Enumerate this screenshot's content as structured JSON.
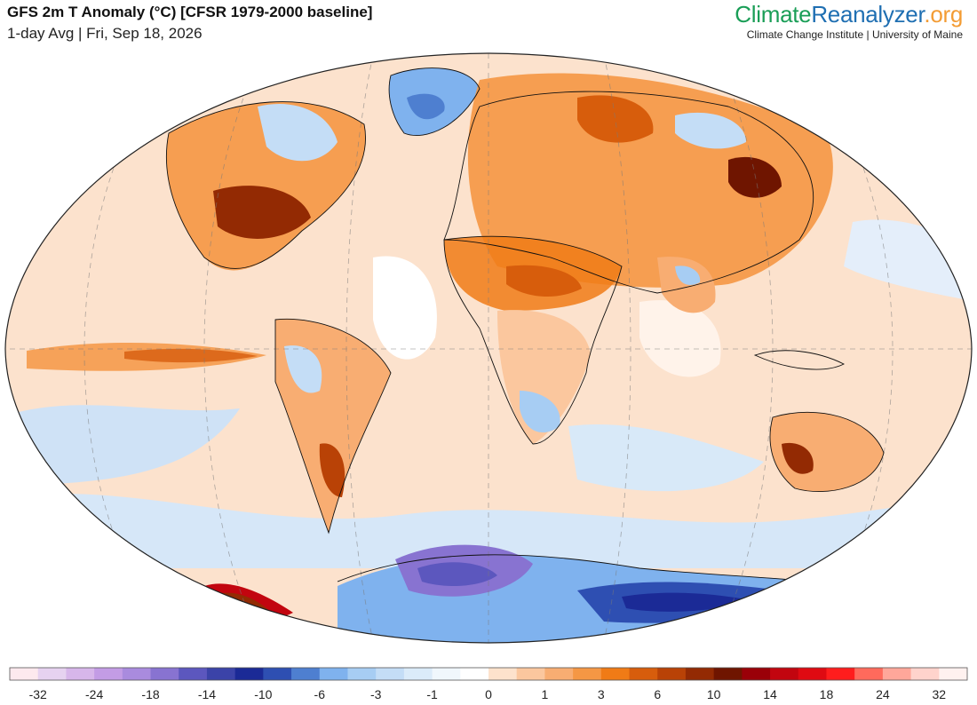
{
  "header": {
    "title": "GFS 2m T Anomaly (°C) [CFSR 1979-2000 baseline]",
    "subtitle": "1-day Avg | Fri, Sep 18, 2026"
  },
  "brand": {
    "logo_part1": "Climate",
    "logo_part2": "Reanalyzer",
    "logo_part3": ".org",
    "tagline": "Climate Change Institute | University of Maine",
    "colors": {
      "climate": "#1a9e57",
      "reanalyzer": "#1f6fb2",
      "org": "#f39c34"
    }
  },
  "map": {
    "projection": "Winkel tripel",
    "gridlines": true,
    "baseline_color": "#ffffff"
  },
  "colorbar": {
    "colors": [
      "#fde9ee",
      "#e6d2f0",
      "#d7b6ea",
      "#c39ce5",
      "#a98bde",
      "#8873d1",
      "#5c57be",
      "#3b43a8",
      "#1b2a96",
      "#2e4fb2",
      "#4e7fd0",
      "#7fb2ee",
      "#a7cdf3",
      "#c4ddf6",
      "#dbebf9",
      "#f0f7fc",
      "#ffffff",
      "#fde2cc",
      "#fbc79e",
      "#f8ad72",
      "#f59744",
      "#f07b16",
      "#d75d0c",
      "#b94206",
      "#932a03",
      "#6f1500",
      "#9a0008",
      "#c2050f",
      "#df0a12",
      "#ff1d1d",
      "#ff6a5c",
      "#ffa79a",
      "#ffd3cc",
      "#fff1ef"
    ],
    "tick_labels": [
      "-32",
      "-24",
      "-18",
      "-14",
      "-10",
      "-6",
      "-3",
      "-1",
      "0",
      "1",
      "3",
      "6",
      "10",
      "14",
      "18",
      "24",
      "32"
    ]
  }
}
